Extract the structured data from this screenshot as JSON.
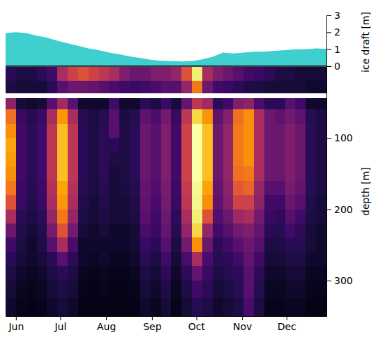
{
  "chart_data": [
    {
      "type": "area",
      "ylabel": "ice draft [m]",
      "color": "#3fcfcf",
      "tick_labels": "y",
      "xlim": [
        145,
        362
      ],
      "ylim": [
        0,
        3
      ],
      "yticks": [
        0,
        1,
        2,
        3
      ],
      "x": [
        145,
        152,
        159,
        166,
        173,
        180,
        187,
        194,
        201,
        208,
        215,
        222,
        229,
        236,
        243,
        250,
        257,
        264,
        271,
        278,
        285,
        292,
        299,
        306,
        313,
        320,
        327,
        334,
        341,
        348,
        355,
        362
      ],
      "values": [
        1.95,
        2.0,
        1.95,
        1.8,
        1.68,
        1.5,
        1.35,
        1.2,
        1.05,
        0.95,
        0.8,
        0.7,
        0.58,
        0.48,
        0.38,
        0.32,
        0.3,
        0.28,
        0.3,
        0.4,
        0.55,
        0.8,
        0.75,
        0.8,
        0.85,
        0.85,
        0.9,
        0.95,
        1.0,
        1.0,
        1.05,
        1.02
      ]
    },
    {
      "type": "heatmap",
      "ylabel": "depth [m]",
      "color": "inferno",
      "xlim": [
        145,
        362
      ],
      "ylim": [
        350,
        0
      ],
      "xticks": [
        {
          "value": 152,
          "label": "Jun"
        },
        {
          "value": 182,
          "label": "Jul"
        },
        {
          "value": 213,
          "label": "Aug"
        },
        {
          "value": 244,
          "label": "Sep"
        },
        {
          "value": 274,
          "label": "Oct"
        },
        {
          "value": 305,
          "label": "Nov"
        },
        {
          "value": 335,
          "label": "Dec"
        }
      ],
      "yticks": [
        100,
        200,
        300
      ],
      "clim": [
        0,
        1
      ],
      "x_bins": [
        145,
        152,
        159,
        166,
        173,
        180,
        187,
        194,
        201,
        208,
        215,
        222,
        229,
        236,
        243,
        250,
        257,
        264,
        271,
        278,
        285,
        292,
        299,
        306,
        313,
        320,
        327,
        334,
        341,
        348,
        355,
        362
      ],
      "y_bins": [
        0,
        20,
        37,
        44,
        60,
        80,
        100,
        120,
        140,
        160,
        180,
        200,
        220,
        240,
        260,
        280,
        300,
        325,
        350
      ],
      "values": [
        [
          0.15,
          0.12,
          0.12,
          0.15,
          0.2,
          0.45,
          0.55,
          0.6,
          0.55,
          0.5,
          0.45,
          0.35,
          0.3,
          0.3,
          0.35,
          0.35,
          0.4,
          0.6,
          0.95,
          0.45,
          0.35,
          0.3,
          0.25,
          0.2,
          0.18,
          0.15,
          0.12,
          0.12,
          0.1,
          0.1,
          0.1
        ],
        [
          0.12,
          0.1,
          0.1,
          0.1,
          0.15,
          0.25,
          0.3,
          0.3,
          0.28,
          0.25,
          0.22,
          0.2,
          0.18,
          0.2,
          0.22,
          0.25,
          0.25,
          0.4,
          0.7,
          0.3,
          0.2,
          0.18,
          0.15,
          0.12,
          0.12,
          0.1,
          0.1,
          0.1,
          0.1,
          0.08,
          0.08
        ],
        [
          null,
          null,
          null,
          null,
          null,
          null,
          null,
          null,
          null,
          null,
          null,
          null,
          null,
          null,
          null,
          null,
          null,
          null,
          null,
          null,
          null,
          null,
          null,
          null,
          null,
          null,
          null,
          null,
          null,
          null,
          null
        ],
        [
          0.38,
          0.1,
          0.08,
          0.1,
          0.25,
          0.43,
          0.25,
          0.08,
          0.08,
          0.08,
          0.2,
          0.08,
          0.08,
          0.15,
          0.12,
          0.18,
          0.1,
          0.28,
          0.5,
          0.43,
          0.15,
          0.2,
          0.35,
          0.38,
          0.22,
          0.15,
          0.15,
          0.25,
          0.2,
          0.08,
          0.08
        ],
        [
          0.68,
          0.18,
          0.14,
          0.18,
          0.45,
          0.77,
          0.45,
          0.14,
          0.11,
          0.14,
          0.25,
          0.11,
          0.14,
          0.27,
          0.23,
          0.32,
          0.18,
          0.5,
          0.9,
          0.77,
          0.27,
          0.36,
          0.68,
          0.75,
          0.45,
          0.3,
          0.27,
          0.32,
          0.27,
          0.14,
          0.11
        ],
        [
          0.75,
          0.2,
          0.15,
          0.2,
          0.5,
          0.85,
          0.5,
          0.15,
          0.12,
          0.15,
          0.25,
          0.12,
          0.15,
          0.3,
          0.25,
          0.35,
          0.2,
          0.55,
          1.0,
          0.85,
          0.3,
          0.4,
          0.7,
          0.75,
          0.45,
          0.3,
          0.3,
          0.35,
          0.3,
          0.15,
          0.12
        ],
        [
          0.8,
          0.2,
          0.15,
          0.2,
          0.5,
          0.85,
          0.5,
          0.15,
          0.12,
          0.15,
          0.15,
          0.12,
          0.15,
          0.3,
          0.25,
          0.35,
          0.2,
          0.55,
          1.0,
          0.85,
          0.3,
          0.4,
          0.7,
          0.75,
          0.45,
          0.3,
          0.3,
          0.35,
          0.3,
          0.15,
          0.12
        ],
        [
          0.78,
          0.2,
          0.15,
          0.2,
          0.5,
          0.85,
          0.5,
          0.15,
          0.12,
          0.15,
          0.12,
          0.12,
          0.15,
          0.3,
          0.25,
          0.35,
          0.2,
          0.55,
          1.0,
          0.85,
          0.3,
          0.4,
          0.7,
          0.75,
          0.45,
          0.3,
          0.3,
          0.35,
          0.3,
          0.15,
          0.12
        ],
        [
          0.75,
          0.2,
          0.15,
          0.2,
          0.5,
          0.85,
          0.5,
          0.15,
          0.12,
          0.15,
          0.1,
          0.12,
          0.15,
          0.3,
          0.25,
          0.35,
          0.2,
          0.55,
          1.0,
          0.85,
          0.3,
          0.4,
          0.68,
          0.7,
          0.45,
          0.3,
          0.3,
          0.35,
          0.3,
          0.15,
          0.12
        ],
        [
          0.7,
          0.19,
          0.14,
          0.19,
          0.48,
          0.8,
          0.48,
          0.14,
          0.11,
          0.14,
          0.1,
          0.11,
          0.14,
          0.28,
          0.24,
          0.33,
          0.19,
          0.52,
          0.98,
          0.8,
          0.28,
          0.38,
          0.62,
          0.65,
          0.4,
          0.25,
          0.25,
          0.33,
          0.28,
          0.14,
          0.11
        ],
        [
          0.6,
          0.18,
          0.13,
          0.18,
          0.45,
          0.77,
          0.45,
          0.13,
          0.1,
          0.13,
          0.1,
          0.1,
          0.13,
          0.27,
          0.22,
          0.32,
          0.18,
          0.5,
          0.97,
          0.75,
          0.27,
          0.36,
          0.55,
          0.55,
          0.38,
          0.2,
          0.2,
          0.3,
          0.25,
          0.13,
          0.1
        ],
        [
          0.45,
          0.15,
          0.12,
          0.15,
          0.4,
          0.7,
          0.4,
          0.12,
          0.1,
          0.12,
          0.1,
          0.1,
          0.12,
          0.25,
          0.2,
          0.3,
          0.16,
          0.45,
          0.95,
          0.6,
          0.24,
          0.3,
          0.42,
          0.45,
          0.32,
          0.18,
          0.16,
          0.25,
          0.2,
          0.12,
          0.1
        ],
        [
          0.3,
          0.13,
          0.1,
          0.13,
          0.33,
          0.6,
          0.32,
          0.1,
          0.08,
          0.1,
          0.08,
          0.08,
          0.1,
          0.22,
          0.18,
          0.28,
          0.14,
          0.4,
          0.9,
          0.4,
          0.2,
          0.25,
          0.32,
          0.35,
          0.28,
          0.15,
          0.14,
          0.2,
          0.16,
          0.1,
          0.08
        ],
        [
          0.2,
          0.12,
          0.08,
          0.12,
          0.25,
          0.45,
          0.22,
          0.08,
          0.08,
          0.08,
          0.08,
          0.08,
          0.1,
          0.18,
          0.15,
          0.25,
          0.12,
          0.32,
          0.75,
          0.3,
          0.16,
          0.2,
          0.25,
          0.3,
          0.25,
          0.12,
          0.12,
          0.15,
          0.14,
          0.1,
          0.08
        ],
        [
          0.15,
          0.1,
          0.08,
          0.1,
          0.15,
          0.25,
          0.15,
          0.08,
          0.06,
          0.08,
          0.06,
          0.06,
          0.08,
          0.15,
          0.12,
          0.2,
          0.1,
          0.22,
          0.45,
          0.22,
          0.14,
          0.16,
          0.2,
          0.28,
          0.2,
          0.1,
          0.1,
          0.12,
          0.12,
          0.08,
          0.08
        ],
        [
          0.12,
          0.08,
          0.06,
          0.08,
          0.12,
          0.15,
          0.12,
          0.06,
          0.05,
          0.06,
          0.05,
          0.05,
          0.06,
          0.12,
          0.1,
          0.16,
          0.08,
          0.16,
          0.28,
          0.18,
          0.12,
          0.14,
          0.16,
          0.26,
          0.16,
          0.08,
          0.08,
          0.1,
          0.1,
          0.06,
          0.06
        ],
        [
          0.1,
          0.06,
          0.05,
          0.06,
          0.1,
          0.12,
          0.1,
          0.05,
          0.04,
          0.05,
          0.04,
          0.04,
          0.05,
          0.1,
          0.08,
          0.12,
          0.06,
          0.12,
          0.2,
          0.15,
          0.1,
          0.12,
          0.14,
          0.25,
          0.14,
          0.06,
          0.06,
          0.08,
          0.08,
          0.05,
          0.05
        ],
        [
          0.08,
          0.05,
          0.04,
          0.05,
          0.08,
          0.1,
          0.08,
          0.04,
          0.04,
          0.04,
          0.04,
          0.04,
          0.04,
          0.08,
          0.06,
          0.1,
          0.05,
          0.1,
          0.14,
          0.12,
          0.08,
          0.1,
          0.12,
          0.22,
          0.12,
          0.05,
          0.05,
          0.06,
          0.06,
          0.04,
          0.04
        ]
      ]
    }
  ]
}
